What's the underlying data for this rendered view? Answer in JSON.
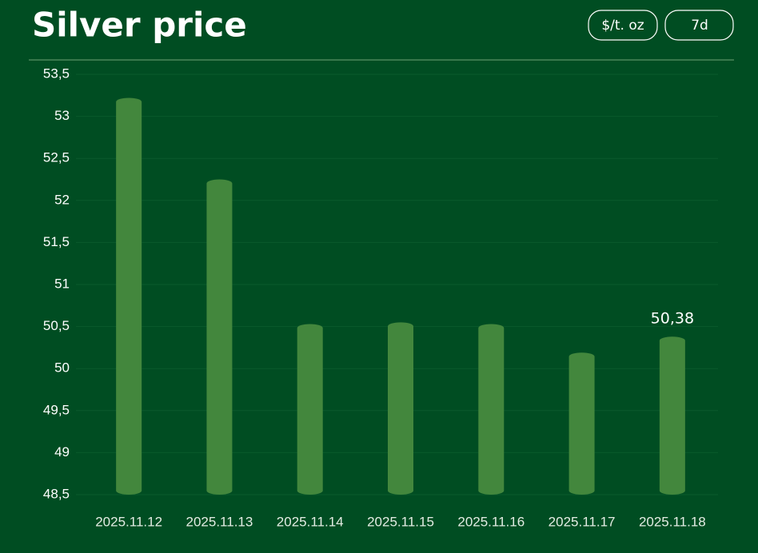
{
  "chart_data": {
    "type": "bar",
    "title": "Silver price",
    "categories": [
      "2025.11.12",
      "2025.11.13",
      "2025.11.14",
      "2025.11.15",
      "2025.11.16",
      "2025.11.17",
      "2025.11.18"
    ],
    "values": [
      53.22,
      52.25,
      50.53,
      50.55,
      50.53,
      50.19,
      50.38
    ],
    "value_labels": [
      null,
      null,
      null,
      null,
      null,
      null,
      "50,38"
    ],
    "color": "#43873d",
    "ylim": [
      48.5,
      53.5
    ],
    "yticks": [
      {
        "value": 48.5,
        "label": "48,5"
      },
      49,
      {
        "value": 49.5,
        "label": "49,5"
      },
      50,
      {
        "value": 50.5,
        "label": "50,5"
      },
      51,
      {
        "value": 51.5,
        "label": "51,5"
      },
      52,
      {
        "value": 52.5,
        "label": "52,5"
      },
      53,
      {
        "value": 53.5,
        "label": "53,5"
      }
    ],
    "grid": true
  },
  "controls": {
    "unit": "$/t. oz",
    "range": "7d"
  }
}
